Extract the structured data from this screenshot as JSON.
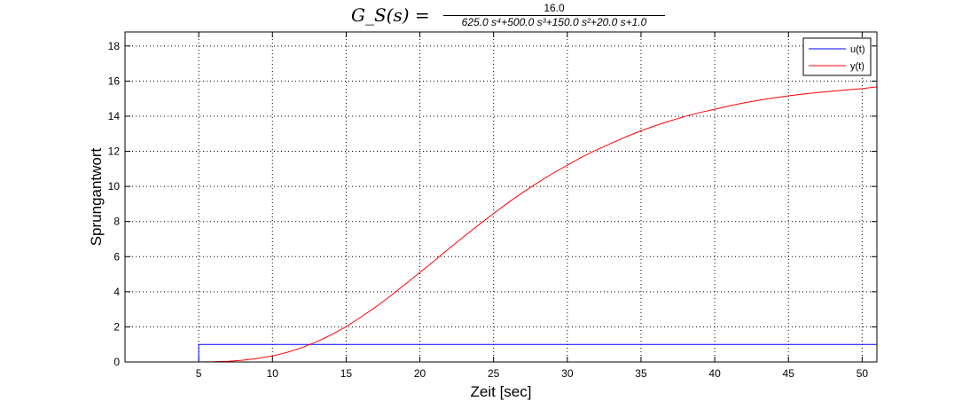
{
  "title": {
    "lhs": "G_S(s) =",
    "numerator": "16.0",
    "denominator": "625.0 s⁴+500.0 s³+150.0 s²+20.0 s+1.0"
  },
  "chart_data": {
    "type": "line",
    "title": "G_S(s) = 16.0 / (625.0 s⁴+500.0 s³+150.0 s²+20.0 s+1.0)",
    "xlabel": "Zeit [sec]",
    "ylabel": "Sprungantwort",
    "xlim": [
      0,
      51
    ],
    "ylim": [
      0,
      18.8
    ],
    "xticks": [
      5,
      10,
      15,
      20,
      25,
      30,
      35,
      40,
      45,
      50
    ],
    "yticks": [
      0,
      2,
      4,
      6,
      8,
      10,
      12,
      14,
      16,
      18
    ],
    "grid": true,
    "legend_position": "top-right",
    "step_time": 5,
    "series": [
      {
        "name": "u(t)",
        "color": "#0000ff",
        "x": [
          0,
          5,
          5,
          51
        ],
        "y": [
          0,
          0,
          1,
          1
        ]
      },
      {
        "name": "y(t)",
        "color": "#ff0000",
        "x": [
          0,
          5,
          6,
          7,
          8,
          9,
          10,
          11,
          12,
          13,
          14,
          15,
          16,
          17,
          18,
          19,
          20,
          21,
          22,
          23,
          24,
          25,
          26,
          27,
          28,
          29,
          30,
          31,
          32,
          33,
          34,
          35,
          36,
          37,
          38,
          39,
          40,
          41,
          42,
          43,
          44,
          45,
          46,
          47,
          48,
          49,
          50,
          51
        ],
        "y": [
          0,
          0,
          0.01,
          0.04,
          0.1,
          0.2,
          0.34,
          0.55,
          0.82,
          1.15,
          1.55,
          2.01,
          2.55,
          3.13,
          3.76,
          4.42,
          5.1,
          5.78,
          6.48,
          7.15,
          7.82,
          8.46,
          9.08,
          9.67,
          10.22,
          10.74,
          11.21,
          11.68,
          12.09,
          12.47,
          12.83,
          13.17,
          13.47,
          13.74,
          13.99,
          14.21,
          14.4,
          14.59,
          14.76,
          14.91,
          15.04,
          15.16,
          15.26,
          15.35,
          15.43,
          15.5,
          15.57,
          15.67
        ]
      }
    ]
  }
}
